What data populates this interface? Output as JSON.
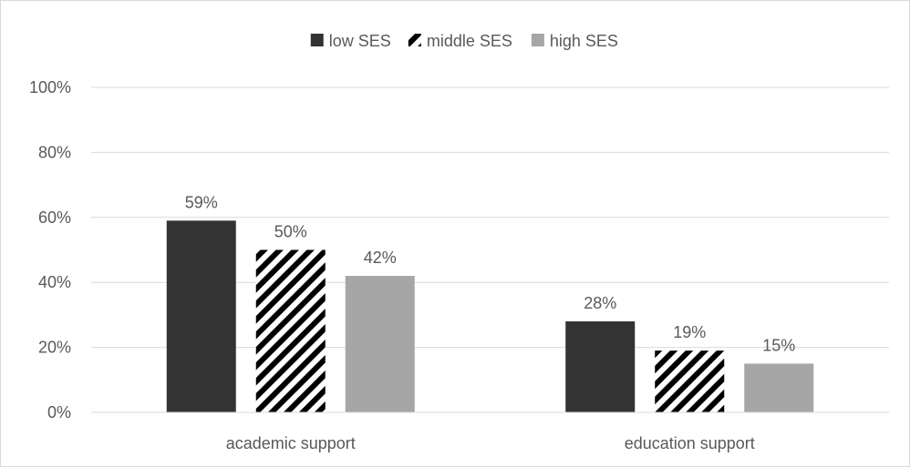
{
  "chart_data": {
    "type": "bar",
    "title": "",
    "xlabel": "",
    "ylabel": "",
    "categories": [
      "academic support",
      "education support"
    ],
    "series": [
      {
        "name": "low SES",
        "values": [
          59,
          28
        ],
        "labels": [
          "59%",
          "28%"
        ],
        "color": "#333333",
        "pattern": "solid"
      },
      {
        "name": "middle SES",
        "values": [
          50,
          19
        ],
        "labels": [
          "50%",
          "19%"
        ],
        "color": "#000000",
        "pattern": "diagonal-stripes"
      },
      {
        "name": "high SES",
        "values": [
          42,
          15
        ],
        "labels": [
          "42%",
          "15%"
        ],
        "color": "#a6a6a6",
        "pattern": "solid"
      }
    ],
    "ylim": [
      0,
      100
    ],
    "yticks": [
      0,
      20,
      40,
      60,
      80,
      100
    ],
    "ytick_labels": [
      "0%",
      "20%",
      "40%",
      "60%",
      "80%",
      "100%"
    ],
    "grid": true,
    "legend_position": "top-center",
    "colors": {
      "gridline": "#d9d9d9",
      "text": "#595959"
    }
  }
}
